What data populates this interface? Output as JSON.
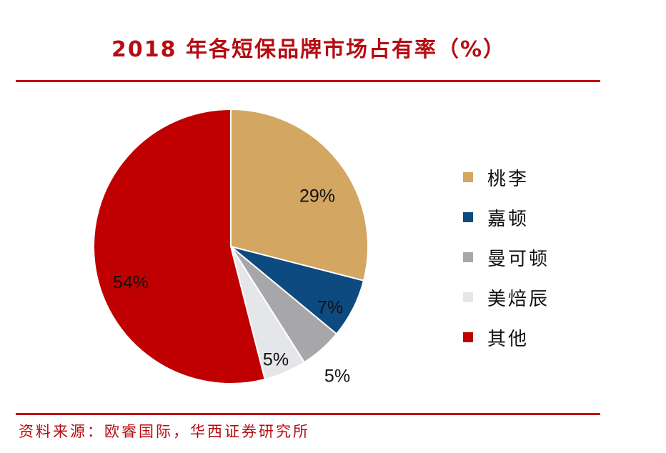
{
  "title": "2018 年各短保品牌市场占有率（%）",
  "source": "资料来源：欧睿国际，华西证券研究所",
  "chart_data": {
    "type": "pie",
    "title": "2018 年各短保品牌市场占有率（%）",
    "slices": [
      {
        "label": "桃李",
        "value": 29,
        "display": "29%",
        "color": "#d3a662"
      },
      {
        "label": "嘉顿",
        "value": 7,
        "display": "7%",
        "color": "#0d4a80"
      },
      {
        "label": "曼可顿",
        "value": 5,
        "display": "5%",
        "color": "#a7a7a9"
      },
      {
        "label": "美焙辰",
        "value": 5,
        "display": "5%",
        "color": "#e5e6ea"
      },
      {
        "label": "其他",
        "value": 54,
        "display": "54%",
        "color": "#c00000"
      }
    ],
    "legend_position": "right"
  }
}
